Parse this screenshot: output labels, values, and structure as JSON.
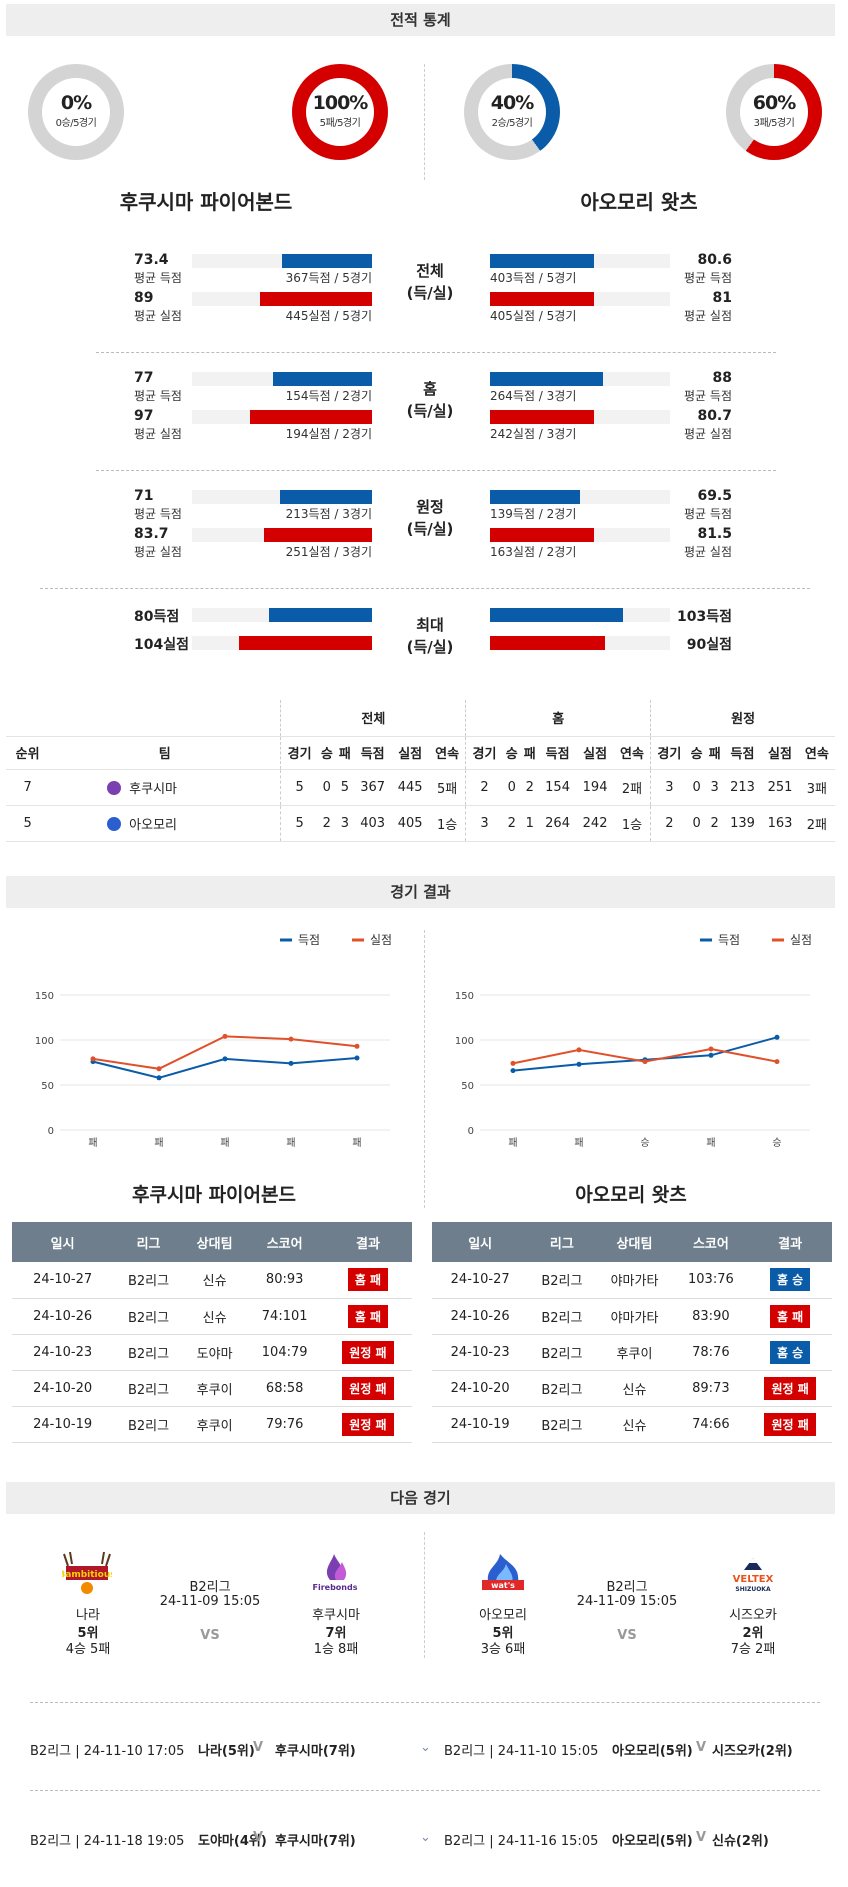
{
  "sections": {
    "stats": "전적 통계",
    "results": "경기 결과",
    "next": "다음 경기"
  },
  "teams": [
    {
      "name": "후쿠시마 파이어본드",
      "win_pct": "0%",
      "win_sub": "0승/5경기",
      "loss_pct": "100%",
      "loss_sub": "5패/5경기",
      "win_frac": 0,
      "loss_frac": 1.0
    },
    {
      "name": "아오모리 왓츠",
      "win_pct": "40%",
      "win_sub": "2승/5경기",
      "loss_pct": "60%",
      "loss_sub": "3패/5경기",
      "win_frac": 0.4,
      "loss_frac": 0.6
    }
  ],
  "colors": {
    "blue": "#0a5ca8",
    "red": "#d40000",
    "orange": "#e0502a",
    "gray": "#d4d4d4"
  },
  "compare": [
    {
      "mid": [
        "전체",
        "(득/실)"
      ],
      "left": {
        "sc_val": "73.4",
        "sc_lab": "평균 득점",
        "sc_cap": "367득점 / 5경기",
        "sc_frac": 0.5,
        "al_val": "89",
        "al_lab": "평균 실점",
        "al_cap": "445실점 / 5경기",
        "al_frac": 0.62
      },
      "right": {
        "sc_val": "80.6",
        "sc_lab": "평균 득점",
        "sc_cap": "403득점 / 5경기",
        "sc_frac": 0.58,
        "al_val": "81",
        "al_lab": "평균 실점",
        "al_cap": "405실점 / 5경기",
        "al_frac": 0.58
      }
    },
    {
      "mid": [
        "홈",
        "(득/실)"
      ],
      "left": {
        "sc_val": "77",
        "sc_lab": "평균 득점",
        "sc_cap": "154득점 / 2경기",
        "sc_frac": 0.55,
        "al_val": "97",
        "al_lab": "평균 실점",
        "al_cap": "194실점 / 2경기",
        "al_frac": 0.68
      },
      "right": {
        "sc_val": "88",
        "sc_lab": "평균 득점",
        "sc_cap": "264득점 / 3경기",
        "sc_frac": 0.63,
        "al_val": "80.7",
        "al_lab": "평균 실점",
        "al_cap": "242실점 / 3경기",
        "al_frac": 0.58
      }
    },
    {
      "mid": [
        "원정",
        "(득/실)"
      ],
      "left": {
        "sc_val": "71",
        "sc_lab": "평균 득점",
        "sc_cap": "213득점 / 3경기",
        "sc_frac": 0.51,
        "al_val": "83.7",
        "al_lab": "평균 실점",
        "al_cap": "251실점 / 3경기",
        "al_frac": 0.6
      },
      "right": {
        "sc_val": "69.5",
        "sc_lab": "평균 득점",
        "sc_cap": "139득점 / 2경기",
        "sc_frac": 0.5,
        "al_val": "81.5",
        "al_lab": "평균 실점",
        "al_cap": "163실점 / 2경기",
        "al_frac": 0.58
      }
    },
    {
      "mid": [
        "최대",
        "(득/실)"
      ],
      "left": {
        "sc_val": "80득점",
        "sc_frac": 0.57,
        "al_val": "104실점",
        "al_frac": 0.74
      },
      "right": {
        "sc_val": "103득점",
        "sc_frac": 0.74,
        "al_val": "90실점",
        "al_frac": 0.64
      }
    }
  ],
  "rank": {
    "groups": [
      "전체",
      "홈",
      "원정"
    ],
    "headers": [
      "순위",
      "팀",
      "경기",
      "승",
      "패",
      "득점",
      "실점",
      "연속",
      "경기",
      "승",
      "패",
      "득점",
      "실점",
      "연속",
      "경기",
      "승",
      "패",
      "득점",
      "실점",
      "연속"
    ],
    "rows": [
      [
        "7",
        "후쿠시마",
        "5",
        "0",
        "5",
        "367",
        "445",
        "5패",
        "2",
        "0",
        "2",
        "154",
        "194",
        "2패",
        "3",
        "0",
        "3",
        "213",
        "251",
        "3패"
      ],
      [
        "5",
        "아오모리",
        "5",
        "2",
        "3",
        "403",
        "405",
        "1승",
        "3",
        "2",
        "1",
        "264",
        "242",
        "1승",
        "2",
        "0",
        "2",
        "139",
        "163",
        "2패"
      ]
    ]
  },
  "legend": {
    "scored": "득점",
    "allowed": "실점"
  },
  "chart_data": [
    {
      "type": "line",
      "categories": [
        "패",
        "패",
        "패",
        "패",
        "패"
      ],
      "ylim": [
        0,
        150
      ],
      "yticks": [
        0,
        50,
        100,
        150
      ],
      "series": [
        {
          "name": "득점",
          "values": [
            76,
            58,
            79,
            74,
            80
          ]
        },
        {
          "name": "실점",
          "values": [
            79,
            68,
            104,
            101,
            93
          ]
        }
      ]
    },
    {
      "type": "line",
      "categories": [
        "패",
        "패",
        "승",
        "패",
        "승"
      ],
      "ylim": [
        0,
        150
      ],
      "yticks": [
        0,
        50,
        100,
        150
      ],
      "series": [
        {
          "name": "득점",
          "values": [
            66,
            73,
            78,
            83,
            103
          ]
        },
        {
          "name": "실점",
          "values": [
            74,
            89,
            76,
            90,
            76
          ]
        }
      ]
    }
  ],
  "results": {
    "headers": [
      "일시",
      "리그",
      "상대팀",
      "스코어",
      "결과"
    ],
    "left": [
      [
        "24-10-27",
        "B2리그",
        "신슈",
        "80:93",
        "홈 패",
        "red"
      ],
      [
        "24-10-26",
        "B2리그",
        "신슈",
        "74:101",
        "홈 패",
        "red"
      ],
      [
        "24-10-23",
        "B2리그",
        "도야마",
        "104:79",
        "원정 패",
        "red"
      ],
      [
        "24-10-20",
        "B2리그",
        "후쿠이",
        "68:58",
        "원정 패",
        "red"
      ],
      [
        "24-10-19",
        "B2리그",
        "후쿠이",
        "79:76",
        "원정 패",
        "red"
      ]
    ],
    "right": [
      [
        "24-10-27",
        "B2리그",
        "야마가타",
        "103:76",
        "홈 승",
        "blue"
      ],
      [
        "24-10-26",
        "B2리그",
        "야마가타",
        "83:90",
        "홈 패",
        "red"
      ],
      [
        "24-10-23",
        "B2리그",
        "후쿠이",
        "78:76",
        "홈 승",
        "blue"
      ],
      [
        "24-10-20",
        "B2리그",
        "신슈",
        "89:73",
        "원정 패",
        "red"
      ],
      [
        "24-10-19",
        "B2리그",
        "신슈",
        "74:66",
        "원정 패",
        "red"
      ]
    ]
  },
  "next_matches": [
    {
      "league": "B2리그",
      "datetime": "24-11-09 15:05",
      "vs": "VS",
      "home": {
        "name": "나라",
        "rank": "5위",
        "record": "4승 5패",
        "logo_text": "Bambitious"
      },
      "away": {
        "name": "후쿠시마",
        "rank": "7위",
        "record": "1승 8패",
        "logo_text": "Firebonds"
      }
    },
    {
      "league": "B2리그",
      "datetime": "24-11-09 15:05",
      "vs": "VS",
      "home": {
        "name": "아오모리",
        "rank": "5위",
        "record": "3승 6패",
        "logo_text": "wat's"
      },
      "away": {
        "name": "시즈오카",
        "rank": "2위",
        "record": "7승 2패",
        "logo_text": "VELTEX",
        "logo_sub": "SHIZUOKA"
      }
    }
  ],
  "upcoming": {
    "left": [
      {
        "info": "B2리그 | 24-11-10 17:05",
        "home": "나라(5위)",
        "away": "후쿠시마(7위)"
      },
      {
        "info": "B2리그 | 24-11-18 19:05",
        "home": "도야마(4위)",
        "away": "후쿠시마(7위)"
      }
    ],
    "right": [
      {
        "info": "B2리그 | 24-11-10 15:05",
        "home": "아오모리(5위)",
        "away": "시즈오카(2위)"
      },
      {
        "info": "B2리그 | 24-11-16 15:05",
        "home": "아오모리(5위)",
        "away": "신슈(2위)"
      }
    ]
  }
}
